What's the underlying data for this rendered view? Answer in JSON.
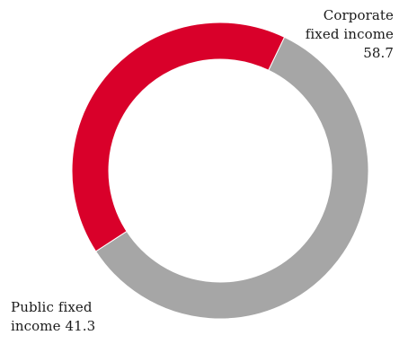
{
  "chart_data": {
    "type": "pie",
    "donut": true,
    "categories": [
      "Corporate fixed income",
      "Public fixed income"
    ],
    "values": [
      58.7,
      41.3
    ],
    "colors": [
      "#a6a6a6",
      "#d9002a"
    ],
    "legend": "none",
    "labels": [
      {
        "lines": [
          "Corporate",
          "fixed income",
          "58.7"
        ]
      },
      {
        "lines": [
          "Public fixed",
          "income 41.3"
        ]
      }
    ]
  }
}
